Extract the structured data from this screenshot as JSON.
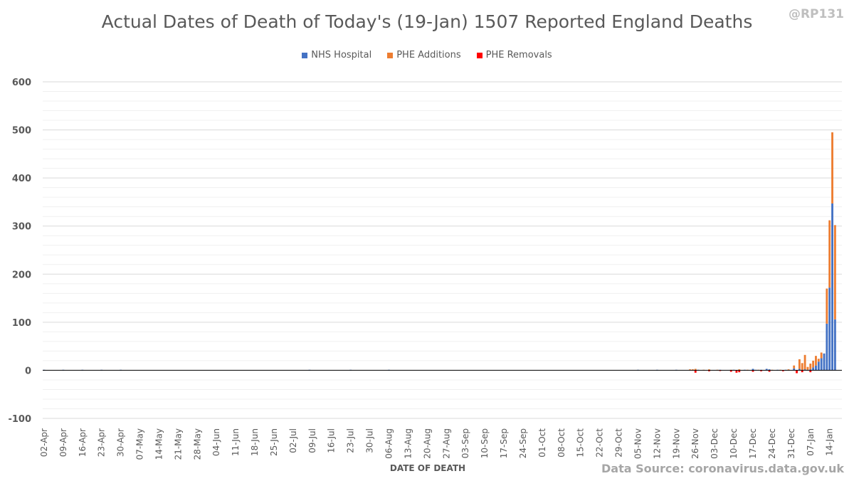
{
  "handle": "@RP131",
  "source": "Data Source: coronavirus.data.gov.uk",
  "chart_data": {
    "type": "bar",
    "stacked": true,
    "title": "Actual Dates of Death of Today's (19-Jan) 1507 Reported England Deaths",
    "xlabel": "DATE OF DEATH",
    "ylabel": "",
    "ylim": [
      -100,
      600
    ],
    "yticks": [
      -100,
      0,
      100,
      200,
      300,
      400,
      500,
      600
    ],
    "grid": true,
    "legend_position": "top",
    "x_start": "2020-04-02",
    "x_end": "2021-01-18",
    "xtick_labels": [
      "02-Apr",
      "09-Apr",
      "16-Apr",
      "23-Apr",
      "30-Apr",
      "07-May",
      "14-May",
      "21-May",
      "28-May",
      "04-Jun",
      "11-Jun",
      "18-Jun",
      "25-Jun",
      "02-Jul",
      "09-Jul",
      "16-Jul",
      "23-Jul",
      "30-Jul",
      "06-Aug",
      "13-Aug",
      "20-Aug",
      "27-Aug",
      "03-Sep",
      "10-Sep",
      "17-Sep",
      "24-Sep",
      "01-Oct",
      "08-Oct",
      "15-Oct",
      "22-Oct",
      "29-Oct",
      "05-Nov",
      "12-Nov",
      "19-Nov",
      "26-Nov",
      "03-Dec",
      "10-Dec",
      "17-Dec",
      "24-Dec",
      "31-Dec",
      "07-Jan",
      "14-Jan"
    ],
    "series": [
      {
        "name": "NHS Hospital",
        "color": "#4472c4",
        "points": [
          [
            "2020-04-02",
            1
          ],
          [
            "2020-04-09",
            1
          ],
          [
            "2020-04-16",
            1
          ],
          [
            "2020-04-23",
            1
          ],
          [
            "2020-04-30",
            1
          ],
          [
            "2020-07-08",
            1
          ],
          [
            "2020-07-23",
            1
          ],
          [
            "2020-08-06",
            1
          ],
          [
            "2020-11-05",
            1
          ],
          [
            "2020-11-12",
            1
          ],
          [
            "2020-11-19",
            1
          ],
          [
            "2020-11-25",
            1
          ],
          [
            "2020-11-27",
            1
          ],
          [
            "2020-12-05",
            1
          ],
          [
            "2020-12-10",
            1
          ],
          [
            "2020-12-14",
            1
          ],
          [
            "2020-12-17",
            3
          ],
          [
            "2020-12-18",
            1
          ],
          [
            "2020-12-20",
            1
          ],
          [
            "2020-12-22",
            3
          ],
          [
            "2020-12-23",
            2
          ],
          [
            "2020-12-26",
            1
          ],
          [
            "2020-12-29",
            1
          ],
          [
            "2021-01-01",
            4
          ],
          [
            "2021-01-03",
            3
          ],
          [
            "2021-01-05",
            2
          ],
          [
            "2021-01-06",
            1
          ],
          [
            "2021-01-07",
            2
          ],
          [
            "2021-01-08",
            6
          ],
          [
            "2021-01-09",
            10
          ],
          [
            "2021-01-10",
            18
          ],
          [
            "2021-01-11",
            25
          ],
          [
            "2021-01-12",
            35
          ],
          [
            "2021-01-13",
            97
          ],
          [
            "2021-01-14",
            172
          ],
          [
            "2021-01-15",
            347
          ],
          [
            "2021-01-16",
            106
          ]
        ]
      },
      {
        "name": "PHE Additions",
        "color": "#ed7d31",
        "points": [
          [
            "2020-11-24",
            2
          ],
          [
            "2020-11-25",
            1
          ],
          [
            "2020-11-26",
            3
          ],
          [
            "2020-11-29",
            1
          ],
          [
            "2020-12-01",
            2
          ],
          [
            "2020-12-04",
            1
          ],
          [
            "2020-12-09",
            1
          ],
          [
            "2020-12-12",
            2
          ],
          [
            "2020-12-15",
            1
          ],
          [
            "2020-12-19",
            1
          ],
          [
            "2020-12-24",
            1
          ],
          [
            "2020-12-27",
            1
          ],
          [
            "2020-12-30",
            2
          ],
          [
            "2021-01-01",
            6
          ],
          [
            "2021-01-03",
            20
          ],
          [
            "2021-01-04",
            15
          ],
          [
            "2021-01-05",
            30
          ],
          [
            "2021-01-06",
            6
          ],
          [
            "2021-01-07",
            12
          ],
          [
            "2021-01-08",
            14
          ],
          [
            "2021-01-09",
            20
          ],
          [
            "2021-01-10",
            6
          ],
          [
            "2021-01-11",
            12
          ],
          [
            "2021-01-13",
            73
          ],
          [
            "2021-01-14",
            140
          ],
          [
            "2021-01-15",
            148
          ],
          [
            "2021-01-16",
            196
          ]
        ]
      },
      {
        "name": "PHE Removals",
        "color": "#ff0000",
        "points": [
          [
            "2020-11-26",
            -5
          ],
          [
            "2020-12-01",
            -2
          ],
          [
            "2020-12-05",
            -1
          ],
          [
            "2020-12-09",
            -3
          ],
          [
            "2020-12-11",
            -5
          ],
          [
            "2020-12-12",
            -4
          ],
          [
            "2020-12-17",
            -3
          ],
          [
            "2020-12-20",
            -2
          ],
          [
            "2020-12-23",
            -3
          ],
          [
            "2020-12-28",
            -2
          ],
          [
            "2021-01-02",
            -6
          ],
          [
            "2021-01-04",
            -4
          ],
          [
            "2021-01-07",
            -4
          ]
        ]
      }
    ]
  }
}
